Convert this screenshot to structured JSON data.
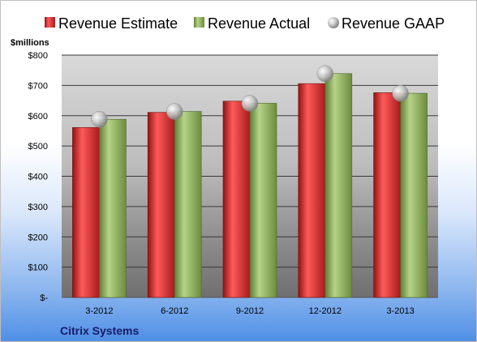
{
  "chart_data": {
    "type": "bar",
    "unit_label": "$millions",
    "company": "Citrix Systems",
    "categories": [
      "3-2012",
      "6-2012",
      "9-2012",
      "12-2012",
      "3-2013"
    ],
    "y_tick_labels": [
      "$-",
      "$100",
      "$200",
      "$300",
      "$400",
      "$500",
      "$600",
      "$700",
      "$800"
    ],
    "ylim": [
      0,
      800
    ],
    "y_step": 100,
    "grid": true,
    "legend_position": "top",
    "series": [
      {
        "name": "Revenue Estimate",
        "kind": "bar",
        "color": "#d42a2a",
        "values": [
          561,
          611,
          648,
          706,
          676
        ]
      },
      {
        "name": "Revenue Actual",
        "kind": "bar",
        "color": "#8cac5a",
        "values": [
          588,
          614,
          641,
          739,
          674
        ]
      },
      {
        "name": "Revenue GAAP",
        "kind": "marker",
        "color": "#b5b5b5",
        "values": [
          588,
          614,
          641,
          739,
          674
        ]
      }
    ]
  }
}
